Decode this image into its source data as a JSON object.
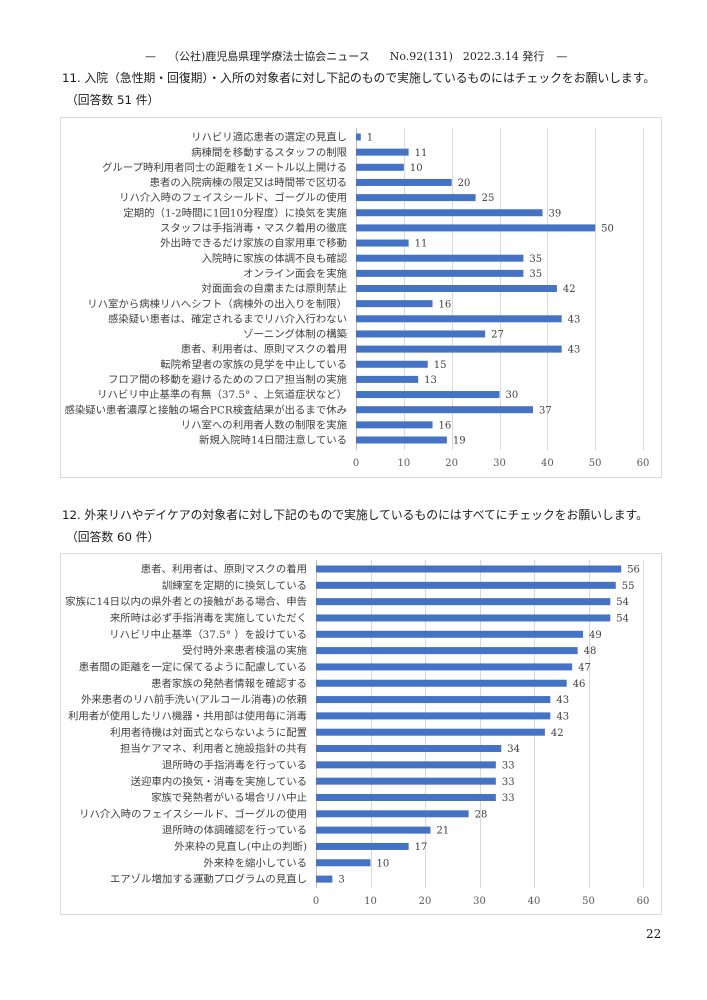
{
  "header": {
    "left_dash": "—",
    "publication": "（公社)鹿児島県理学療法士協会ニュース",
    "issue": "No.92(131)",
    "date": "2022.3.14 発行",
    "right_dash": "—"
  },
  "sections": [
    {
      "question": "11. 入院（急性期・回復期）・入所の対象者に対し下記のもので実施しているものにはチェックをお願いします。",
      "responses": "（回答数 51 件）"
    },
    {
      "question": "12. 外来リハやデイケアの対象者に対し下記のもので実施しているものにはすべてにチェックをお願いします。",
      "responses": "（回答数 60 件）"
    }
  ],
  "page_number": "22",
  "colors": {
    "bar": "#4472C4",
    "gridline": "#D9D9D9",
    "axis_line": "#BFBFBF",
    "frame": "#D9D9D9"
  },
  "chart_data": [
    {
      "type": "bar",
      "orientation": "horizontal",
      "categories": [
        "リハビリ適応患者の選定の見直し",
        "病棟間を移動するスタッフの制限",
        "グループ時利用者同士の距離を1メートル以上開ける",
        "患者の入院病棟の限定又は時間帯で区切る",
        "リハ介入時のフェイスシールド、ゴーグルの使用",
        "定期的（1-2時間に1回10分程度）に換気を実施",
        "スタッフは手指消毒・マスク着用の徹底",
        "外出時できるだけ家族の自家用車で移動",
        "入院時に家族の体調不良も確認",
        "オンライン面会を実施",
        "対面面会の自粛または原則禁止",
        "リハ室から病棟リハへシフト（病棟外の出入りを制限）",
        "感染疑い患者は、確定されるまでリハ介入行わない",
        "ゾーニング体制の構築",
        "患者、利用者は、原則マスクの着用",
        "転院希望者の家族の見学を中止している",
        "フロア間の移動を避けるためのフロア担当制の実施",
        "リハビリ中止基準の有無（37.5° 、上気道症状など）",
        "感染疑い患者濃厚と接触の場合PCR検査結果が出るまで休み",
        "リハ室への利用者人数の制限を実施",
        "新規入院時14日間注意している"
      ],
      "values": [
        1,
        11,
        10,
        20,
        25,
        39,
        50,
        11,
        35,
        35,
        42,
        16,
        43,
        27,
        43,
        15,
        13,
        30,
        37,
        16,
        19
      ],
      "xlim": [
        0,
        60
      ],
      "xticks": [
        0,
        10,
        20,
        30,
        40,
        50,
        60
      ],
      "grid": "vertical",
      "legend": "none",
      "data_labels": "outside-end"
    },
    {
      "type": "bar",
      "orientation": "horizontal",
      "categories": [
        "患者、利用者は、原則マスクの着用",
        "訓練室を定期的に換気している",
        "家族に14日以内の県外者との接触がある場合、申告",
        "来所時は必ず手指消毒を実施していただく",
        "リハビリ中止基準（37.5° ）を設けている",
        "受付時外来患者検温の実施",
        "患者間の距離を一定に保てるように配慮している",
        "患者家族の発熱者情報を確認する",
        "外来患者のリハ前手洗い(アルコール消毒)の依頼",
        "利用者が使用したリハ機器・共用部は使用毎に消毒",
        "利用者待機は対面式とならないように配置",
        "担当ケアマネ、利用者と施設指針の共有",
        "退所時の手指消毒を行っている",
        "送迎車内の換気・消毒を実施している",
        "家族で発熱者がいる場合リハ中止",
        "リハ介入時のフェイスシールド、ゴーグルの使用",
        "退所時の体調確認を行っている",
        "外来枠の見直し(中止の判断)",
        "外来枠を縮小している",
        "エアゾル増加する運動プログラムの見直し"
      ],
      "values": [
        56,
        55,
        54,
        54,
        49,
        48,
        47,
        46,
        43,
        43,
        42,
        34,
        33,
        33,
        33,
        28,
        21,
        17,
        10,
        3
      ],
      "xlim": [
        0,
        60
      ],
      "xticks": [
        0,
        10,
        20,
        30,
        40,
        50,
        60
      ],
      "grid": "vertical",
      "legend": "none",
      "data_labels": "outside-end"
    }
  ]
}
